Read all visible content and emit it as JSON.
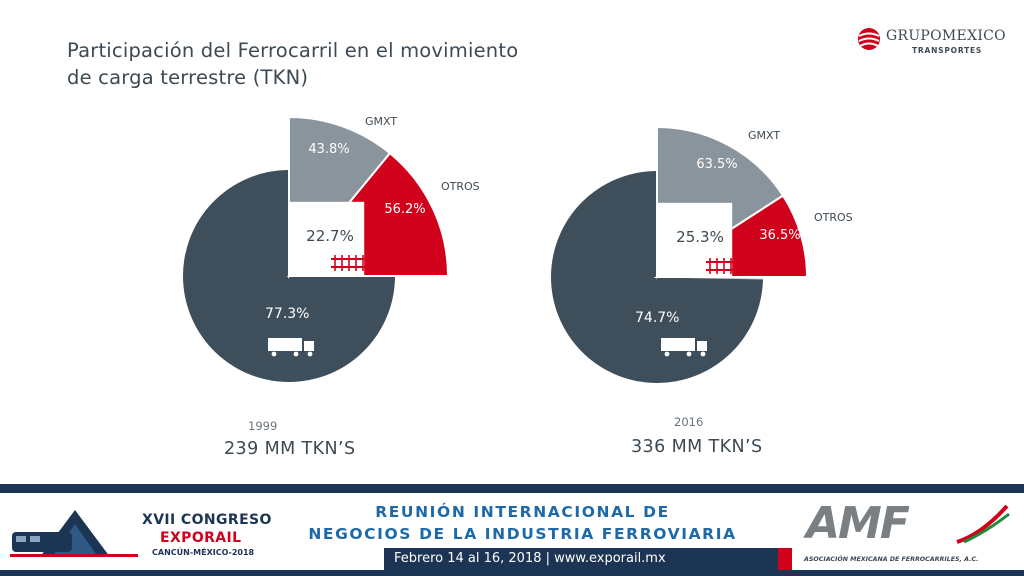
{
  "title": {
    "line1": "Participación del Ferrocarril en el movimiento",
    "line2": "de carga terrestre (TKN)"
  },
  "logo": {
    "name": "GRUPOMEXICO",
    "sub": "TRANSPORTES"
  },
  "colors": {
    "truck": "#3e4e5a",
    "gmxt": "#8a949c",
    "otros": "#d0021b",
    "rail_bg": "#ffffff"
  },
  "chart_data": [
    {
      "type": "pie",
      "year": "1999",
      "total": "239 MM TKN’S",
      "slices": [
        {
          "name": "Carretero",
          "label": "77.3%",
          "value": 77.3
        },
        {
          "name": "Ferrocarril",
          "label": "22.7%",
          "value": 22.7
        }
      ],
      "rail_breakdown": [
        {
          "name": "GMXT",
          "label": "43.8%",
          "value": 43.8
        },
        {
          "name": "OTROS",
          "label": "56.2%",
          "value": 56.2
        }
      ]
    },
    {
      "type": "pie",
      "year": "2016",
      "total": "336 MM TKN’S",
      "slices": [
        {
          "name": "Carretero",
          "label": "74.7%",
          "value": 74.7
        },
        {
          "name": "Ferrocarril",
          "label": "25.3%",
          "value": 25.3
        }
      ],
      "rail_breakdown": [
        {
          "name": "GMXT",
          "label": "63.5%",
          "value": 63.5
        },
        {
          "name": "OTROS",
          "label": "36.5%",
          "value": 36.5
        }
      ]
    }
  ],
  "footer": {
    "banner_line1": "REUNIÓN INTERNACIONAL DE",
    "banner_line2": "NEGOCIOS DE LA INDUSTRIA FERROVIARIA",
    "date": "Febrero 14 al 16, 2018 | www.exporail.mx",
    "expo_l1": "XVII CONGRESO",
    "expo_l2": "EXPORAIL",
    "expo_l3": "CANCÚN-MÉXICO-2018",
    "amf_big": "AMF",
    "amf_small": "ASOCIACIÓN MEXICANA DE FERROCARRILES, A.C."
  }
}
